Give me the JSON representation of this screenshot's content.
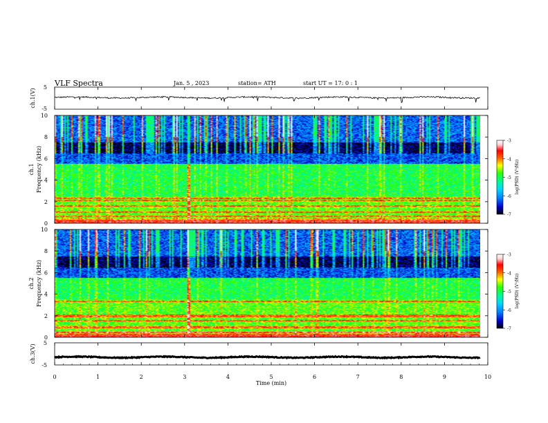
{
  "header": {
    "title": "VLF  Spectra",
    "date": "Jan.  5   , 2023",
    "station": "station= ATH",
    "start": "start  UT  =    17: 0    : 1"
  },
  "colors": {
    "spectrogram_scale": [
      "#000000",
      "#0000cc",
      "#0080ff",
      "#00d8ff",
      "#00ff80",
      "#30ff00",
      "#ffff00",
      "#ff6000",
      "#ff0000",
      "#ffd0d0",
      "#ffffff"
    ]
  },
  "chart_data": [
    {
      "type": "line",
      "name": "ch1-waveform",
      "ylabel": "ch.1(V)",
      "ylim": [
        -5,
        5
      ],
      "yticks": [
        "5",
        "-5"
      ],
      "xlim": [
        0,
        10
      ],
      "baseline": 0.3,
      "amplitude_band": 0.6
    },
    {
      "type": "heatmap",
      "name": "ch1-spectrogram",
      "ylabel": "ch.1",
      "ylabel2": "Frequency (kHz)",
      "ylim": [
        0,
        10
      ],
      "yticks": [
        "10",
        "8",
        "6",
        "4",
        "2",
        "0"
      ],
      "xlim": [
        0,
        10
      ],
      "colorbar": {
        "label": "log(PSD) (V²/Hz)",
        "ticks": [
          "-3",
          "-4",
          "-5",
          "-6",
          "-7"
        ],
        "range": [
          -7,
          -3
        ]
      },
      "bands_kHz": [
        {
          "from": 0,
          "to": 0.5,
          "level": "high"
        },
        {
          "from": 0.5,
          "to": 2.5,
          "level": "medium-high"
        },
        {
          "from": 2.5,
          "to": 5.5,
          "level": "medium"
        },
        {
          "from": 5.5,
          "to": 7.5,
          "level": "low"
        },
        {
          "from": 7.5,
          "to": 10,
          "level": "mixed"
        }
      ],
      "lines_kHz": [
        0.2,
        0.6,
        1.0,
        1.6,
        2.1,
        2.3
      ],
      "spike_min": 3.2
    },
    {
      "type": "heatmap",
      "name": "ch2-spectrogram",
      "ylabel": "ch.2",
      "ylabel2": "Frequency (kHz)",
      "ylim": [
        0,
        10
      ],
      "yticks": [
        "10",
        "8",
        "6",
        "4",
        "2",
        "0"
      ],
      "xlim": [
        0,
        10
      ],
      "colorbar": {
        "label": "log(PSD) (V²/Hz)",
        "ticks": [
          "-3",
          "-4",
          "-5",
          "-6",
          "-7"
        ],
        "range": [
          -7,
          -3
        ]
      },
      "bands_kHz": [
        {
          "from": 0,
          "to": 0.5,
          "level": "high"
        },
        {
          "from": 0.5,
          "to": 3.5,
          "level": "medium-high"
        },
        {
          "from": 3.5,
          "to": 5.5,
          "level": "medium"
        },
        {
          "from": 5.5,
          "to": 7.5,
          "level": "low"
        },
        {
          "from": 7.5,
          "to": 10,
          "level": "mixed"
        }
      ],
      "lines_kHz": [
        0.4,
        0.9,
        1.5,
        1.9,
        2.0,
        3.3
      ],
      "spike_min": 3.2
    },
    {
      "type": "line",
      "name": "ch3-waveform",
      "ylabel": "ch.3(V)",
      "ylim": [
        -5,
        5
      ],
      "yticks": [
        "5",
        "-5"
      ],
      "xlim": [
        0,
        10
      ],
      "baseline": -1.5,
      "amplitude_band": 0.4
    }
  ],
  "xaxis": {
    "label": "Time  (min)",
    "ticks": [
      "0",
      "1",
      "2",
      "3",
      "4",
      "5",
      "6",
      "7",
      "8",
      "9",
      "10"
    ]
  }
}
